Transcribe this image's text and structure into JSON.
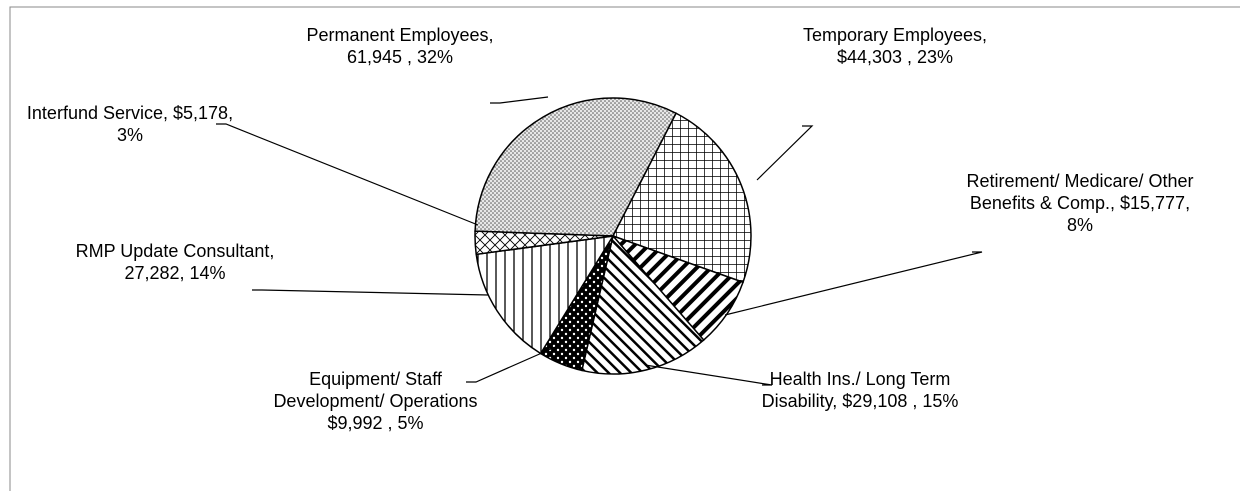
{
  "chart_data": {
    "type": "pie",
    "categories": [
      "Permanent Employees,",
      "Temporary Employees,",
      "Retirement/ Medicare/ Other Benefits & Comp.,",
      "Health Ins./ Long Term Disability,",
      "Equipment/ Staff Development/ Operations",
      "RMP Update Consultant,",
      "Interfund Service,"
    ],
    "values": [
      61945,
      44303,
      15777,
      29108,
      9992,
      27282,
      5178
    ],
    "value_labels": [
      "61,945 , 32%",
      "$44,303 , 23%",
      "$15,777, 8%",
      "$29,108 , 15%",
      "$9,992 , 5%",
      "27,282, 14%",
      "$5,178, 3%"
    ]
  }
}
